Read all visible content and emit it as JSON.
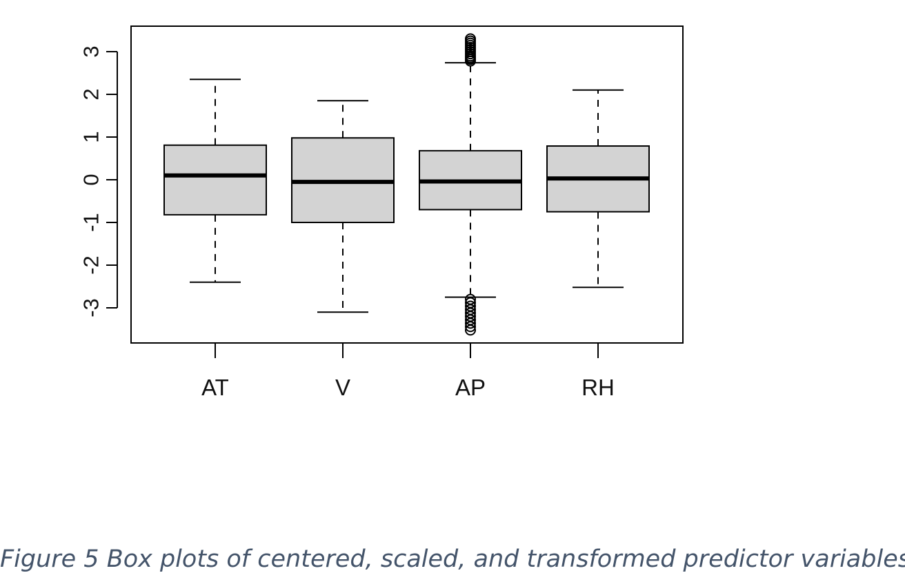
{
  "caption": "Figure 5 Box plots of centered, scaled, and transformed predictor variables",
  "chart_data": {
    "type": "box",
    "title": "",
    "xlabel": "",
    "ylabel": "",
    "ylim": [
      -3.8,
      3.6
    ],
    "yticks": [
      -3,
      -2,
      -1,
      0,
      1,
      2,
      3
    ],
    "ytick_labels": [
      "-3",
      "-2",
      "-1",
      "0",
      "1",
      "2",
      "3"
    ],
    "categories": [
      "AT",
      "V",
      "AP",
      "RH"
    ],
    "boxes": [
      {
        "name": "AT",
        "whisker_low": -2.4,
        "q1": -0.82,
        "median": 0.1,
        "q3": 0.81,
        "whisker_high": 2.35,
        "outliers": []
      },
      {
        "name": "V",
        "whisker_low": -3.1,
        "q1": -1.0,
        "median": -0.05,
        "q3": 0.98,
        "whisker_high": 1.85,
        "outliers": []
      },
      {
        "name": "AP",
        "whisker_low": -2.75,
        "q1": -0.7,
        "median": -0.04,
        "q3": 0.68,
        "whisker_high": 2.74,
        "outliers": [
          2.78,
          2.82,
          2.86,
          2.9,
          2.95,
          3.0,
          3.05,
          3.1,
          3.15,
          3.2,
          3.25,
          3.3,
          -2.8,
          -2.88,
          -2.96,
          -3.04,
          -3.12,
          -3.2,
          -3.28,
          -3.36,
          -3.44,
          -3.52
        ]
      },
      {
        "name": "RH",
        "whisker_low": -2.52,
        "q1": -0.75,
        "median": 0.03,
        "q3": 0.79,
        "whisker_high": 2.1,
        "outliers": []
      }
    ],
    "grid": false,
    "legend": "none",
    "colors": {
      "box_fill": "#d3d3d3",
      "stroke": "#000000",
      "caption": "#44546a"
    }
  }
}
